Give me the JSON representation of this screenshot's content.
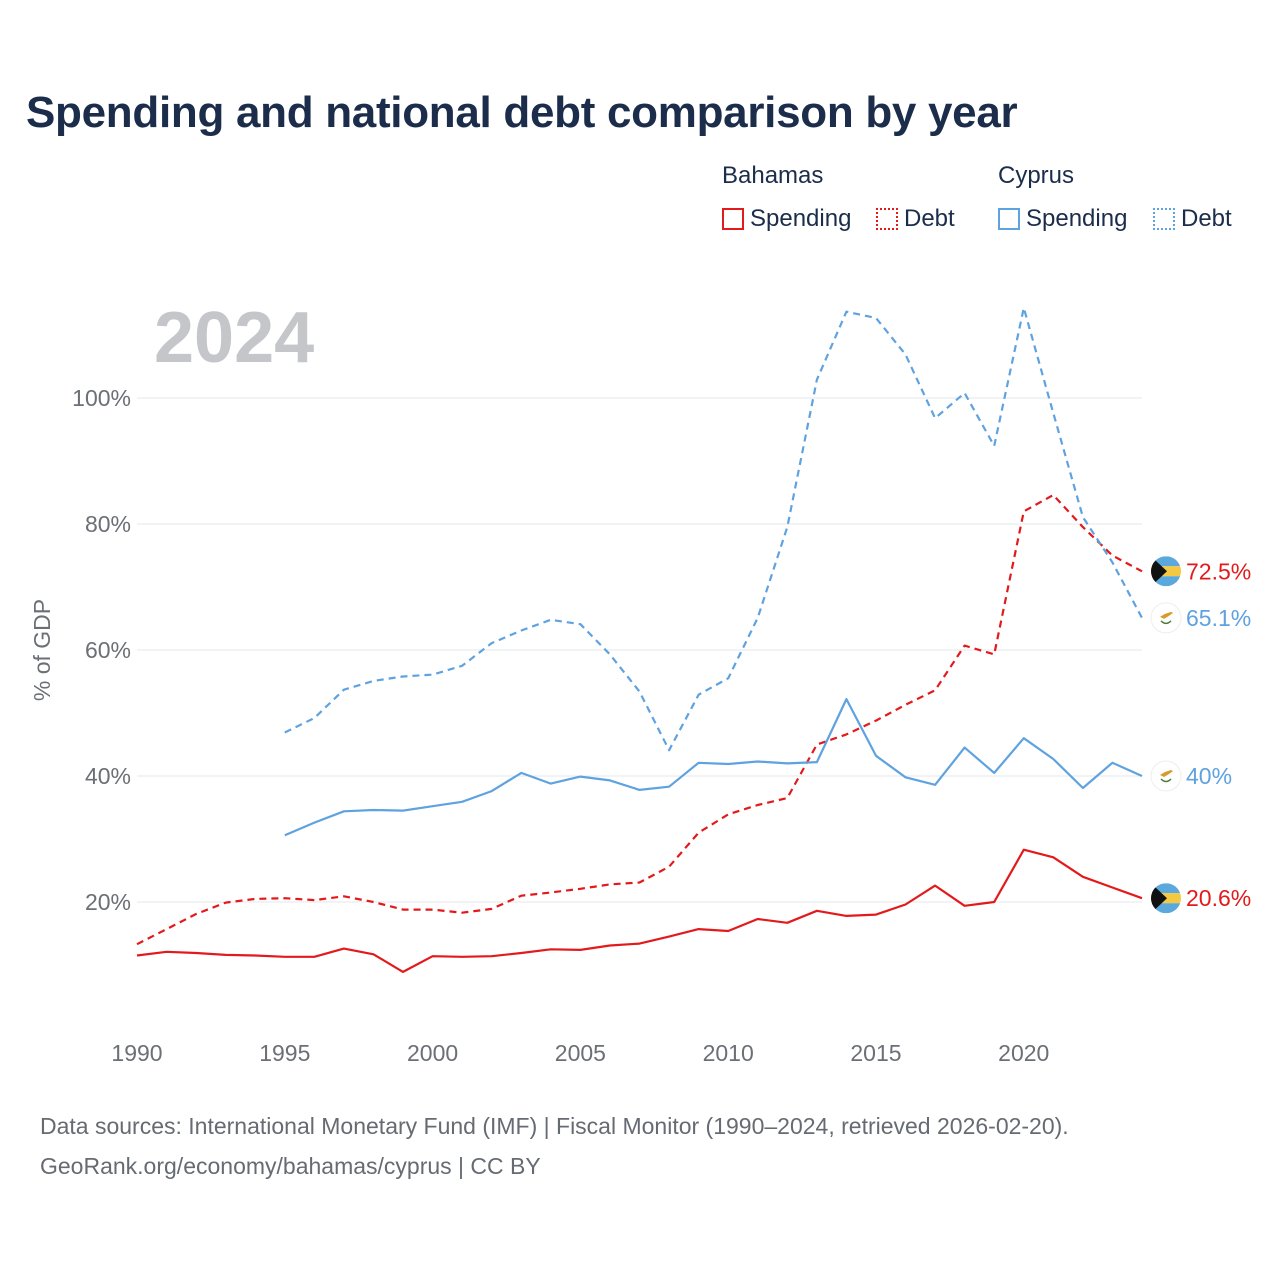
{
  "chart_data": {
    "type": "line",
    "title": "Spending and national debt comparison by year",
    "year_label": "2024",
    "ylabel": "% of GDP",
    "xlabel": "",
    "xlim": [
      1990,
      2024
    ],
    "ylim": [
      0,
      120
    ],
    "x_ticks": [
      1990,
      1995,
      2000,
      2005,
      2010,
      2015,
      2020
    ],
    "y_ticks": [
      {
        "value": 20,
        "label": "20%"
      },
      {
        "value": 40,
        "label": "40%"
      },
      {
        "value": 60,
        "label": "60%"
      },
      {
        "value": 80,
        "label": "80%"
      },
      {
        "value": 100,
        "label": "100%"
      }
    ],
    "legend": {
      "groups": [
        {
          "name": "Bahamas",
          "items": [
            {
              "label": "Spending",
              "style": "solid",
              "color": "#e31a1c"
            },
            {
              "label": "Debt",
              "style": "dotted",
              "color": "#e31a1c"
            }
          ]
        },
        {
          "name": "Cyprus",
          "items": [
            {
              "label": "Spending",
              "style": "solid",
              "color": "#5fa2e0"
            },
            {
              "label": "Debt",
              "style": "dotted",
              "color": "#5fa2e0"
            }
          ]
        }
      ]
    },
    "series": [
      {
        "name": "Bahamas Spending",
        "country": "Bahamas",
        "color": "#e31a1c",
        "dash": false,
        "end_label": "20.6%",
        "flag": "bahamas",
        "x": [
          1990,
          1991,
          1992,
          1993,
          1994,
          1995,
          1996,
          1997,
          1998,
          1999,
          2000,
          2001,
          2002,
          2003,
          2004,
          2005,
          2006,
          2007,
          2008,
          2009,
          2010,
          2011,
          2012,
          2013,
          2014,
          2015,
          2016,
          2017,
          2018,
          2019,
          2020,
          2021,
          2022,
          2023,
          2024
        ],
        "values": [
          11.5,
          12.1,
          11.9,
          11.6,
          11.5,
          11.3,
          11.3,
          12.6,
          11.7,
          8.9,
          11.4,
          11.3,
          11.4,
          11.9,
          12.5,
          12.4,
          13.1,
          13.4,
          14.5,
          15.7,
          15.4,
          17.3,
          16.7,
          18.6,
          17.8,
          18.0,
          19.6,
          22.6,
          19.4,
          20.0,
          28.3,
          27.1,
          24.0,
          22.3,
          20.6
        ]
      },
      {
        "name": "Bahamas Debt",
        "country": "Bahamas",
        "color": "#e31a1c",
        "dash": true,
        "end_label": "72.5%",
        "flag": "bahamas",
        "x": [
          1990,
          1991,
          1992,
          1993,
          1994,
          1995,
          1996,
          1997,
          1998,
          1999,
          2000,
          2001,
          2002,
          2003,
          2004,
          2005,
          2006,
          2007,
          2008,
          2009,
          2010,
          2011,
          2012,
          2013,
          2014,
          2015,
          2016,
          2017,
          2018,
          2019,
          2020,
          2021,
          2022,
          2023,
          2024
        ],
        "values": [
          13.3,
          15.7,
          18.1,
          19.9,
          20.5,
          20.6,
          20.3,
          20.9,
          20.0,
          18.8,
          18.8,
          18.3,
          18.9,
          21.0,
          21.5,
          22.1,
          22.8,
          23.1,
          25.6,
          31.0,
          33.9,
          35.4,
          36.5,
          45.0,
          46.6,
          48.8,
          51.3,
          53.6,
          60.7,
          59.3,
          82.0,
          84.6,
          79.5,
          75.0,
          72.5
        ]
      },
      {
        "name": "Cyprus Spending",
        "country": "Cyprus",
        "color": "#5fa2e0",
        "dash": false,
        "end_label": "40%",
        "flag": "cyprus",
        "x": [
          1995,
          1996,
          1997,
          1998,
          1999,
          2000,
          2001,
          2002,
          2003,
          2004,
          2005,
          2006,
          2007,
          2008,
          2009,
          2010,
          2011,
          2012,
          2013,
          2014,
          2015,
          2016,
          2017,
          2018,
          2019,
          2020,
          2021,
          2022,
          2023,
          2024
        ],
        "values": [
          30.6,
          32.6,
          34.4,
          34.6,
          34.5,
          35.2,
          35.9,
          37.6,
          40.5,
          38.8,
          39.9,
          39.3,
          37.8,
          38.3,
          42.1,
          41.9,
          42.3,
          42.0,
          42.2,
          52.2,
          43.2,
          39.8,
          38.6,
          44.5,
          40.5,
          46.0,
          42.7,
          38.1,
          42.1,
          40.0
        ]
      },
      {
        "name": "Cyprus Debt",
        "country": "Cyprus",
        "color": "#5fa2e0",
        "dash": true,
        "end_label": "65.1%",
        "flag": "cyprus",
        "x": [
          1995,
          1996,
          1997,
          1998,
          1999,
          2000,
          2001,
          2002,
          2003,
          2004,
          2005,
          2006,
          2007,
          2008,
          2009,
          2010,
          2011,
          2012,
          2013,
          2014,
          2015,
          2016,
          2017,
          2018,
          2019,
          2020,
          2021,
          2022,
          2023,
          2024
        ],
        "values": [
          46.9,
          49.2,
          53.7,
          55.1,
          55.8,
          56.1,
          57.5,
          61.1,
          63.1,
          64.8,
          64.1,
          59.3,
          53.4,
          44.1,
          52.9,
          55.5,
          65.1,
          79.5,
          102.9,
          113.7,
          112.7,
          106.9,
          96.8,
          100.8,
          92.4,
          114.3,
          97.6,
          81.1,
          73.9,
          65.1
        ]
      }
    ]
  },
  "footer": {
    "line1": "Data sources: International Monetary Fund (IMF) | Fiscal Monitor (1990–2024, retrieved 2026-02-20).",
    "line2": "GeoRank.org/economy/bahamas/cyprus | CC BY"
  }
}
